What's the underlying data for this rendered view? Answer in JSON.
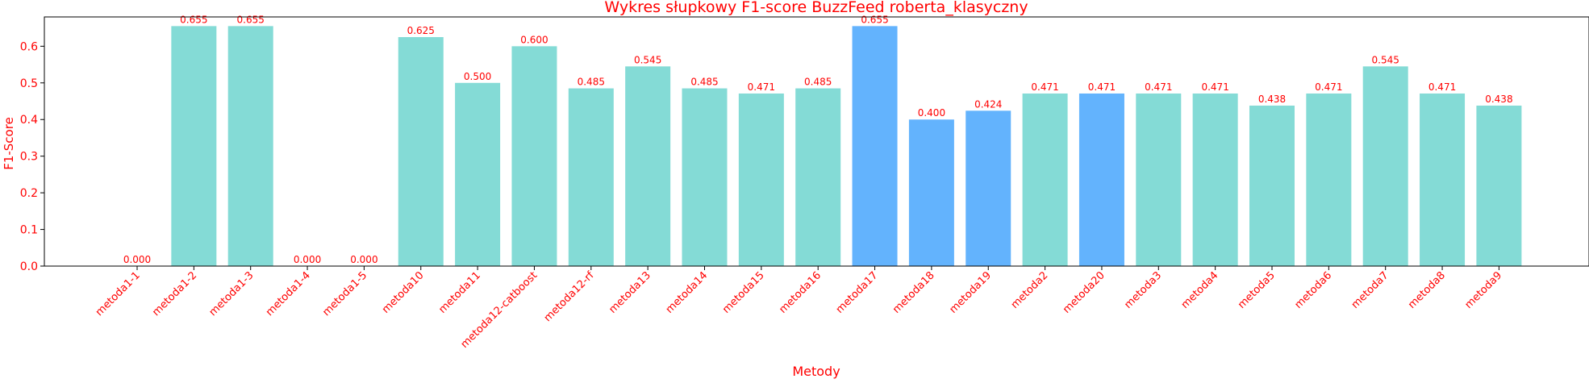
{
  "chart_data": {
    "type": "bar",
    "title": "Wykres słupkowy F1-score BuzzFeed roberta_klasyczny",
    "xlabel": "Metody",
    "ylabel": "F1-Score",
    "ylim": [
      0,
      0.68
    ],
    "yticks": [
      0.0,
      0.1,
      0.2,
      0.3,
      0.4,
      0.5,
      0.6
    ],
    "ytick_labels": [
      "0.0",
      "0.1",
      "0.2",
      "0.3",
      "0.4",
      "0.5",
      "0.6"
    ],
    "grid": false,
    "categories": [
      "metoda1-1",
      "metoda1-2",
      "metoda1-3",
      "metoda1-4",
      "metoda1-5",
      "metoda10",
      "metoda11",
      "metoda12-catboost",
      "metoda12-rf",
      "metoda13",
      "metoda14",
      "metoda15",
      "metoda16",
      "metoda17",
      "metoda18",
      "metoda19",
      "metoda2",
      "metoda20",
      "metoda3",
      "metoda4",
      "metoda5",
      "metoda6",
      "metoda7",
      "metoda8",
      "metoda9"
    ],
    "values": [
      0.0,
      0.655,
      0.655,
      0.0,
      0.0,
      0.625,
      0.5,
      0.6,
      0.485,
      0.545,
      0.485,
      0.471,
      0.485,
      0.655,
      0.4,
      0.424,
      0.471,
      0.471,
      0.471,
      0.471,
      0.438,
      0.471,
      0.545,
      0.471,
      0.438
    ],
    "value_labels": [
      "0.000",
      "0.655",
      "0.655",
      "0.000",
      "0.000",
      "0.625",
      "0.500",
      "0.600",
      "0.485",
      "0.545",
      "0.485",
      "0.471",
      "0.485",
      "0.655",
      "0.400",
      "0.424",
      "0.471",
      "0.471",
      "0.471",
      "0.471",
      "0.438",
      "0.471",
      "0.545",
      "0.471",
      "0.438"
    ],
    "bar_colors": [
      "#84dbd6",
      "#84dbd6",
      "#84dbd6",
      "#84dbd6",
      "#84dbd6",
      "#84dbd6",
      "#84dbd6",
      "#84dbd6",
      "#84dbd6",
      "#84dbd6",
      "#84dbd6",
      "#84dbd6",
      "#84dbd6",
      "#63b3fd",
      "#63b3fd",
      "#63b3fd",
      "#84dbd6",
      "#63b3fd",
      "#84dbd6",
      "#84dbd6",
      "#84dbd6",
      "#84dbd6",
      "#84dbd6",
      "#84dbd6",
      "#84dbd6"
    ],
    "text_color": "#ff0000",
    "axis_color": "#000000"
  }
}
